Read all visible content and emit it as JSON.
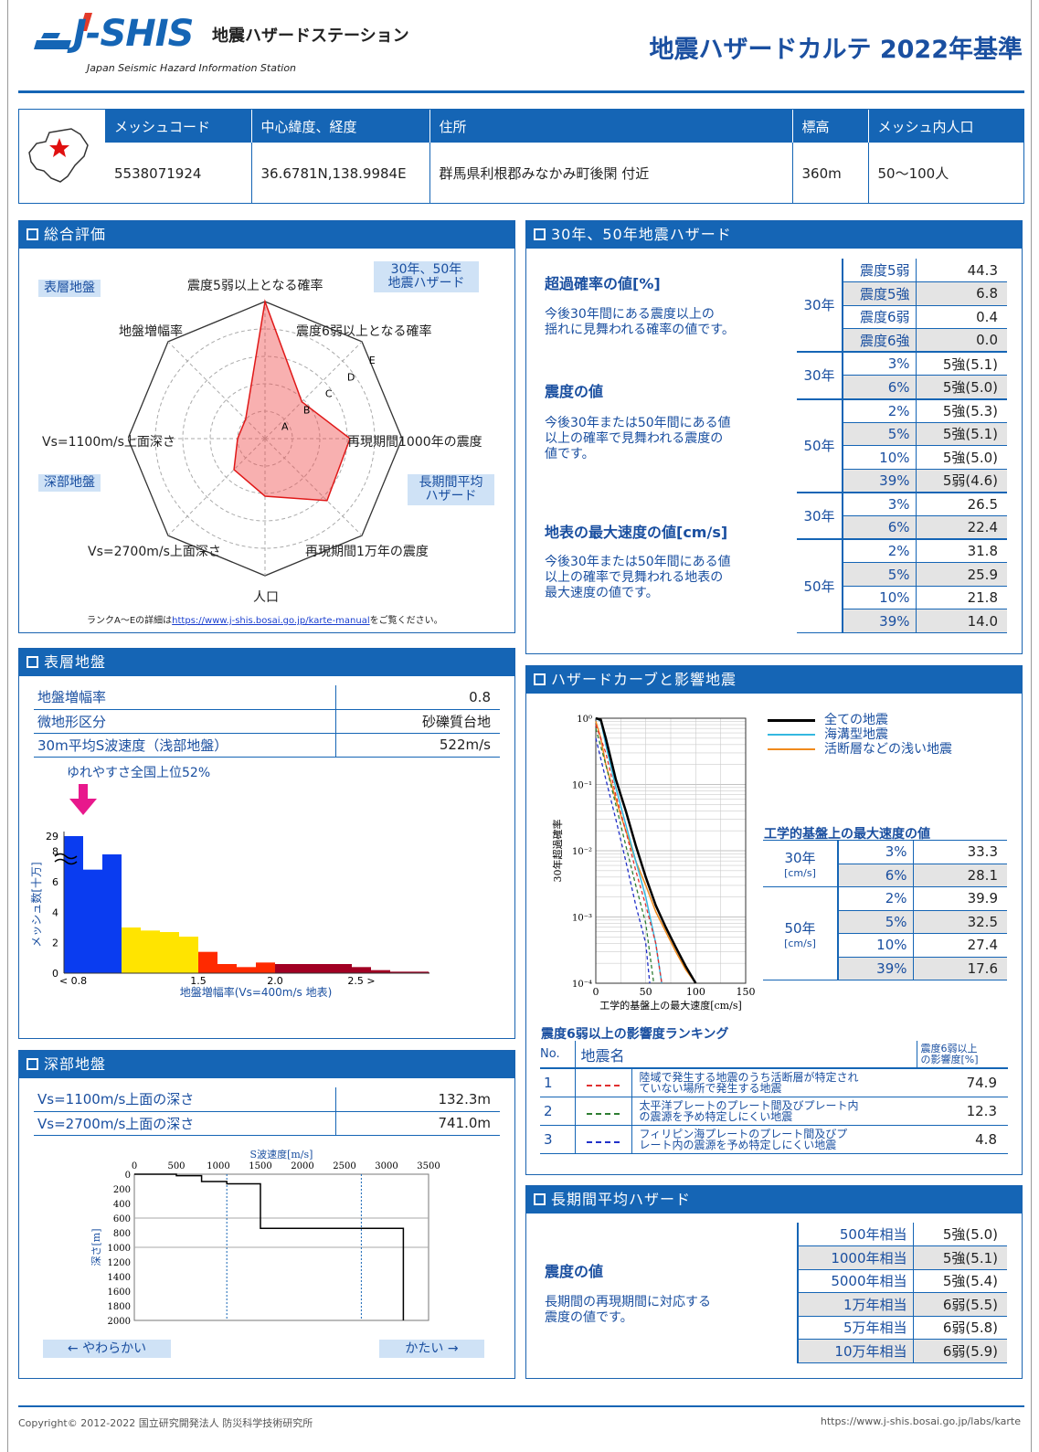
{
  "header": {
    "logo_text": "J-SHIS",
    "site_name": "地震ハザードステーション",
    "site_en": "Japan Seismic Hazard Information Station",
    "title": "地震ハザードカルテ 2022年基準"
  },
  "info": {
    "headers": [
      "メッシュコード",
      "中心緯度、経度",
      "住所",
      "標高",
      "メッシュ内人口"
    ],
    "values": [
      "5538071924",
      "36.6781N,138.9984E",
      "群馬県利根郡みなかみ町後閑 付近",
      "360m",
      "50〜100人"
    ]
  },
  "sogo": {
    "title": "総合評価",
    "tag_hyoso": "表層地盤",
    "tag_3050": "30年、50年\n地震ハザード",
    "tag_shinbu": "深部地盤",
    "tag_choki": "長期間平均\nハザード",
    "axes": [
      "震度5弱以上となる確率",
      "震度6弱以上となる確率",
      "再現期間1000年の震度",
      "再現期間1万年の震度",
      "人口",
      "Vs=2700m/s上面深さ",
      "Vs=1100m/s上面深さ",
      "地盤増幅率"
    ],
    "rank_letters": [
      "A",
      "B",
      "C",
      "D",
      "E"
    ],
    "values": [
      5,
      1.9,
      3.1,
      3.2,
      2.1,
      1.6,
      1.0,
      1.0
    ],
    "note_pre": "ランクA〜Eの詳細は",
    "note_link": "https://www.j-shis.bosai.go.jp/karte-manual",
    "note_post": "をご覧ください。"
  },
  "hazard3050": {
    "title": "30年、50年地震ハザード",
    "prob_title": "超過確率の値[%]",
    "prob_desc": "今後30年間にある震度以上の\n揺れに見舞われる確率の値です。",
    "prob_period": "30年",
    "prob_rows": [
      [
        "震度5弱",
        "44.3"
      ],
      [
        "震度5強",
        "6.8"
      ],
      [
        "震度6弱",
        "0.4"
      ],
      [
        "震度6強",
        "0.0"
      ]
    ],
    "int_title": "震度の値",
    "int_desc": "今後30年または50年間にある値\n以上の確率で見舞われる震度の\n値です。",
    "int_30": [
      [
        "3%",
        "5強(5.1)"
      ],
      [
        "6%",
        "5強(5.0)"
      ]
    ],
    "int_50": [
      [
        "2%",
        "5強(5.3)"
      ],
      [
        "5%",
        "5強(5.1)"
      ],
      [
        "10%",
        "5強(5.0)"
      ],
      [
        "39%",
        "5弱(4.6)"
      ]
    ],
    "vel_title": "地表の最大速度の値[cm/s]",
    "vel_desc": "今後30年または50年間にある値\n以上の確率で見舞われる地表の\n最大速度の値です。",
    "vel_30": [
      [
        "3%",
        "26.5"
      ],
      [
        "6%",
        "22.4"
      ]
    ],
    "vel_50": [
      [
        "2%",
        "31.8"
      ],
      [
        "5%",
        "25.9"
      ],
      [
        "10%",
        "21.8"
      ],
      [
        "39%",
        "14.0"
      ]
    ],
    "p30": "30年",
    "p50": "50年"
  },
  "hyoso": {
    "title": "表層地盤",
    "rows": [
      [
        "地盤増幅率",
        "0.8"
      ],
      [
        "微地形区分",
        "砂礫質台地"
      ],
      [
        "30m平均S波速度（浅部地盤）",
        "522m/s"
      ]
    ],
    "yure": "ゆれやすさ全国上位52%",
    "ylabel": "メッシュ数[十万]",
    "xlabel": "地盤増幅率(Vs=400m/s 地表)",
    "yticks": [
      "0",
      "2",
      "4",
      "6",
      "8",
      "29"
    ],
    "xticks": [
      "< 0.8",
      "1.5",
      "2.0",
      "2.5 >"
    ]
  },
  "chart_data": [
    {
      "type": "bar",
      "title": "",
      "xlabel": "地盤増幅率(Vs=400m/s 地表)",
      "ylabel": "メッシュ数[十万]",
      "ylim": [
        0,
        9
      ],
      "axis_break": true,
      "top_tick": "29",
      "values": [
        29,
        6.8,
        7.8,
        3.0,
        2.8,
        2.7,
        2.4,
        1.4,
        0.6,
        0.4,
        0.7,
        0.6,
        0.6,
        0.6,
        0.6,
        0.4,
        0.2,
        0.1,
        0.1,
        0.05,
        0.03
      ],
      "colors": [
        "#0a3cf0",
        "#0a3cf0",
        "#0a3cf0",
        "#ffe400",
        "#ffe400",
        "#ffe400",
        "#ffe400",
        "#ff2a00",
        "#ff2a00",
        "#ff2a00",
        "#ff2a00",
        "#a10023",
        "#a10023",
        "#a10023",
        "#a10023",
        "#a10023",
        "#a10023",
        "#a10023",
        "#a10023",
        "#a10023",
        "#a10023"
      ]
    },
    {
      "type": "line",
      "title": "",
      "xlabel": "工学的基盤上の最大速度[cm/s]",
      "ylabel": "30年超過確率",
      "xlim": [
        0,
        150
      ],
      "ylim_log": [
        -4,
        0
      ],
      "series": [
        {
          "name": "全ての地震",
          "color": "#000000",
          "x": [
            0,
            5,
            10,
            20,
            30,
            40,
            50,
            60,
            70,
            80,
            90,
            100
          ],
          "y": [
            1,
            0.95,
            0.5,
            0.12,
            0.04,
            0.012,
            0.004,
            0.0015,
            0.0007,
            0.00035,
            0.00018,
            0.0001
          ]
        },
        {
          "name": "海溝型地震",
          "color": "#34b8e0",
          "x": [
            0,
            5,
            10,
            20,
            30,
            40,
            50,
            60,
            66
          ],
          "y": [
            1,
            0.9,
            0.4,
            0.09,
            0.025,
            0.007,
            0.002,
            0.0004,
            0.0001
          ]
        },
        {
          "name": "活断層などの浅い地震",
          "color": "#f08a1c",
          "x": [
            0,
            5,
            10,
            20,
            30,
            40,
            50,
            60,
            70,
            80,
            90,
            100
          ],
          "y": [
            0.9,
            0.5,
            0.2,
            0.06,
            0.02,
            0.007,
            0.003,
            0.0012,
            0.0006,
            0.0003,
            0.00016,
            0.0001
          ]
        }
      ]
    },
    {
      "type": "line",
      "title": "",
      "xlabel": "S波速度[m/s]",
      "ylabel": "深さ[m]",
      "xlim": [
        0,
        3500
      ],
      "ylim": [
        0,
        2000
      ],
      "series": [
        {
          "name": "",
          "x": [
            0,
            500,
            500,
            800,
            800,
            1100,
            1100,
            1500,
            1500,
            3200,
            3200
          ],
          "y": [
            0,
            0,
            20,
            20,
            100,
            100,
            132,
            132,
            741,
            741,
            2000
          ]
        }
      ]
    }
  ],
  "hazcurve": {
    "title": "ハザードカーブと影響地震",
    "legend": [
      "全ての地震",
      "海溝型地震",
      "活断層などの浅い地震"
    ],
    "ylabel": "30年超過確率",
    "xlabel": "工学的基盤上の最大速度[cm/s]",
    "yticks": [
      "10⁰",
      "10⁻¹",
      "10⁻²",
      "10⁻³",
      "10⁻⁴"
    ],
    "xticks": [
      "0",
      "50",
      "100",
      "150"
    ],
    "kogaku_title": "工学的基盤上の最大速度の値",
    "p30": "30年",
    "p50": "50年",
    "unit": "[cm/s]",
    "v30": [
      [
        "3%",
        "33.3"
      ],
      [
        "6%",
        "28.1"
      ]
    ],
    "v50": [
      [
        "2%",
        "39.9"
      ],
      [
        "5%",
        "32.5"
      ],
      [
        "10%",
        "27.4"
      ],
      [
        "39%",
        "17.6"
      ]
    ],
    "rank_title": "震度6弱以上の影響度ランキング",
    "col_no": "No.",
    "col_name": "地震名",
    "col_val": "震度6弱以上\nの影響度[%]",
    "rank": [
      {
        "no": "1",
        "color": "#e03030",
        "name": "陸域で発生する地震のうち活断層が特定され\nていない場所で発生する地震",
        "val": "74.9"
      },
      {
        "no": "2",
        "color": "#2e7d32",
        "name": "太平洋プレートのプレート間及びプレート内\nの震源を予め特定しにくい地震",
        "val": "12.3"
      },
      {
        "no": "3",
        "color": "#2030c8",
        "name": "フィリピン海プレートのプレート間及びプ\nレート内の震源を予め特定しにくい地震",
        "val": "4.8"
      }
    ]
  },
  "shinbu": {
    "title": "深部地盤",
    "rows": [
      [
        "Vs=1100m/s上面の深さ",
        "132.3m"
      ],
      [
        "Vs=2700m/s上面の深さ",
        "741.0m"
      ]
    ],
    "xlabel": "S波速度[m/s]",
    "ylabel": "深さ[m]",
    "xticks": [
      "0",
      "500",
      "1000",
      "1500",
      "2000",
      "2500",
      "3000",
      "3500"
    ],
    "yticks": [
      "0",
      "200",
      "400",
      "600",
      "800",
      "1000",
      "1200",
      "1400",
      "1600",
      "1800",
      "2000"
    ],
    "soft": "← やわらかい",
    "hard": "かたい →"
  },
  "choki": {
    "title": "長期間平均ハザード",
    "int_title": "震度の値",
    "desc": "長期間の再現期間に対応する\n震度の値です。",
    "rows": [
      [
        "500年相当",
        "5強(5.0)"
      ],
      [
        "1000年相当",
        "5強(5.1)"
      ],
      [
        "5000年相当",
        "5強(5.4)"
      ],
      [
        "1万年相当",
        "6弱(5.5)"
      ],
      [
        "5万年相当",
        "6弱(5.8)"
      ],
      [
        "10万年相当",
        "6弱(5.9)"
      ]
    ]
  },
  "footer": {
    "copyright": "Copyright© 2012-2022 国立研究開発法人 防災科学技術研究所",
    "url": "https://www.j-shis.bosai.go.jp/labs/karte"
  }
}
